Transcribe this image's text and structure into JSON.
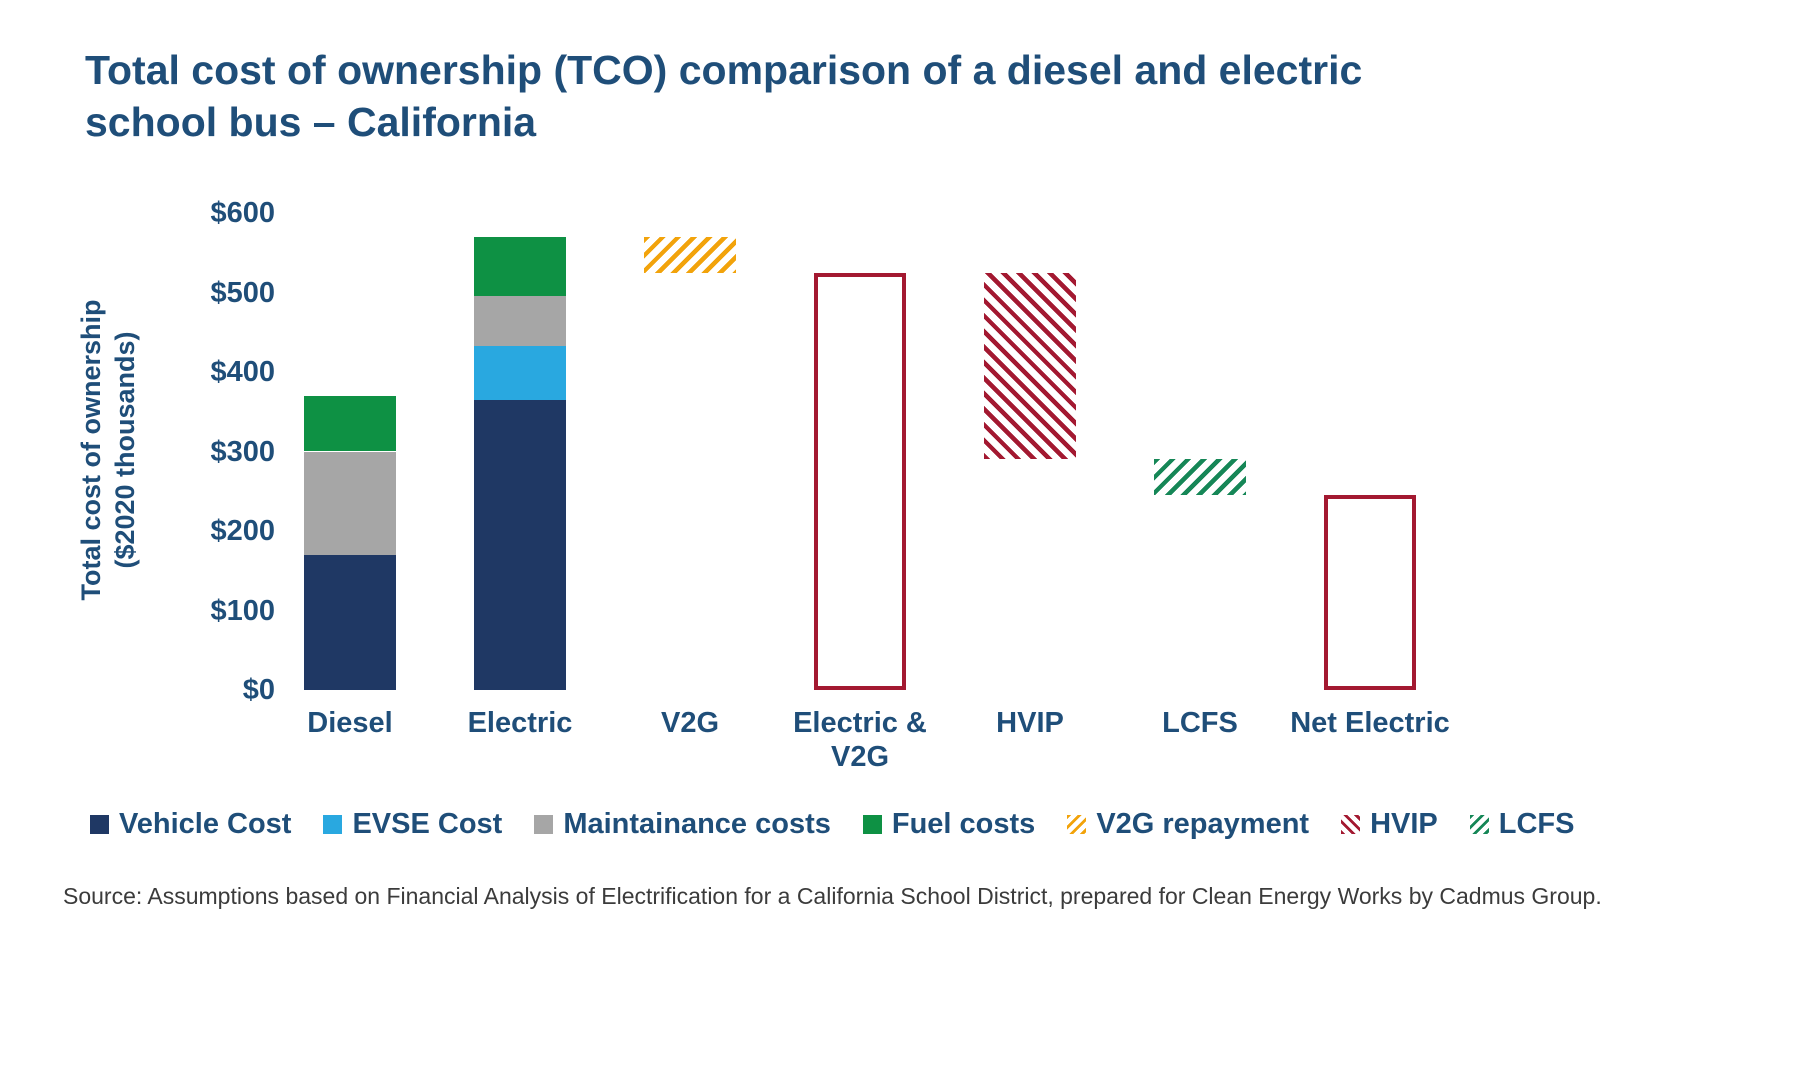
{
  "chart_data": {
    "type": "bar",
    "subtype": "stacked-bar-waterfall-with-hatched-adjustments",
    "title": "Total cost of ownership (TCO) comparison of a diesel and electric school bus – California",
    "ylabel_line1": "Total cost of ownership",
    "ylabel_line2": "($2020 thousands)",
    "xlabel": "",
    "ylim": [
      0,
      600
    ],
    "grid": false,
    "legend_position": "bottom",
    "yticks": [
      {
        "v": 0,
        "label": "$0"
      },
      {
        "v": 100,
        "label": "$100"
      },
      {
        "v": 200,
        "label": "$200"
      },
      {
        "v": 300,
        "label": "$300"
      },
      {
        "v": 400,
        "label": "$400"
      },
      {
        "v": 500,
        "label": "$500"
      },
      {
        "v": 600,
        "label": "$600"
      }
    ],
    "series_colors": {
      "Vehicle Cost": "#1F3864",
      "EVSE Cost": "#29A8E0",
      "Maintainance costs": "#A6A6A6",
      "Fuel costs": "#0E9144",
      "V2G repayment": "#F2A30B",
      "HVIP": "#A31931",
      "LCFS": "#168757"
    },
    "outline_color": "#A31931",
    "bars": [
      {
        "label": "Diesel",
        "kind": "stack",
        "segments": [
          {
            "series": "Vehicle Cost",
            "from": 0,
            "to": 170
          },
          {
            "series": "Maintainance costs",
            "from": 170,
            "to": 300
          },
          {
            "series": "Fuel costs",
            "from": 300,
            "to": 370
          }
        ]
      },
      {
        "label": "Electric",
        "kind": "stack",
        "segments": [
          {
            "series": "Vehicle Cost",
            "from": 0,
            "to": 365
          },
          {
            "series": "EVSE Cost",
            "from": 365,
            "to": 433
          },
          {
            "series": "Maintainance costs",
            "from": 433,
            "to": 495
          },
          {
            "series": "Fuel costs",
            "from": 495,
            "to": 570
          }
        ]
      },
      {
        "label": "V2G",
        "kind": "hatch",
        "series": "V2G repayment",
        "hatch": "forward",
        "from": 525,
        "to": 570
      },
      {
        "label": "Electric &\nV2G",
        "kind": "outline",
        "from": 0,
        "to": 525
      },
      {
        "label": "HVIP",
        "kind": "hatch",
        "series": "HVIP",
        "hatch": "back",
        "from": 290,
        "to": 525
      },
      {
        "label": "LCFS",
        "kind": "hatch",
        "series": "LCFS",
        "hatch": "forward",
        "from": 245,
        "to": 290
      },
      {
        "label": "Net Electric",
        "kind": "outline",
        "from": 0,
        "to": 245
      }
    ],
    "legend": [
      {
        "label": "Vehicle Cost",
        "swatch": "solid",
        "series": "Vehicle Cost"
      },
      {
        "label": "EVSE Cost",
        "swatch": "solid",
        "series": "EVSE Cost"
      },
      {
        "label": "Maintainance costs",
        "swatch": "solid",
        "series": "Maintainance costs"
      },
      {
        "label": "Fuel costs",
        "swatch": "solid",
        "series": "Fuel costs"
      },
      {
        "label": "V2G repayment",
        "swatch": "hatch-forward",
        "series": "V2G repayment"
      },
      {
        "label": "HVIP",
        "swatch": "hatch-back",
        "series": "HVIP"
      },
      {
        "label": "LCFS",
        "swatch": "hatch-forward",
        "series": "LCFS"
      }
    ]
  },
  "source": "Source: Assumptions based on Financial Analysis of Electrification for a California School District, prepared for Clean Energy Works by Cadmus Group."
}
